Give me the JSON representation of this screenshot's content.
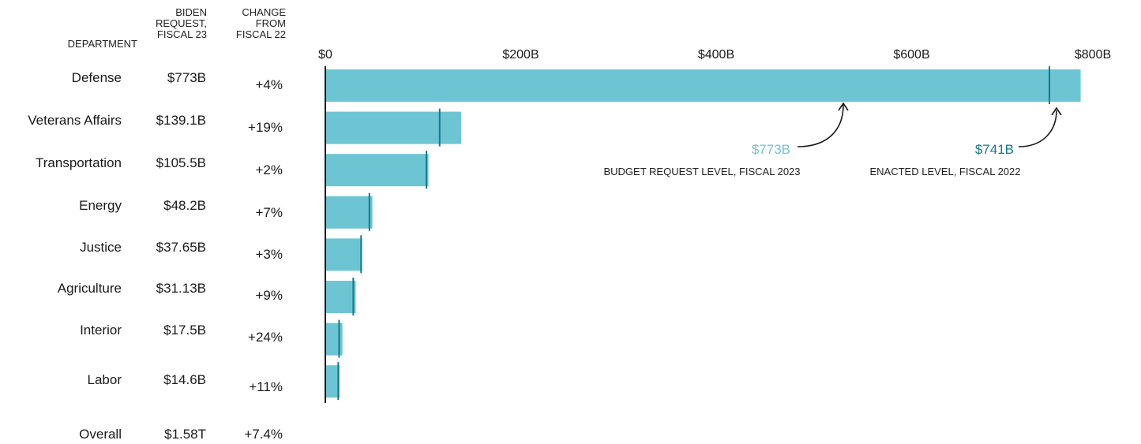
{
  "headers": {
    "department": "DEPARTMENT",
    "request": [
      "BIDEN",
      "REQUEST,",
      "FISCAL 23"
    ],
    "change": [
      "CHANGE",
      "FROM",
      "FISCAL 22"
    ]
  },
  "overall": {
    "label": "Overall",
    "request": "$1.58T",
    "change": "+7.4%"
  },
  "annotations": {
    "request_value": "$773B",
    "request_label": "BUDGET REQUEST LEVEL, FISCAL 2023",
    "enacted_value": "$741B",
    "enacted_label": "ENACTED LEVEL, FISCAL 2022"
  },
  "colors": {
    "bar": "#6dc5d3",
    "marker": "#137a8f",
    "axis": "#1a1a1a"
  },
  "chart_data": {
    "type": "bar",
    "orientation": "horizontal",
    "xlim": [
      0,
      800
    ],
    "x_ticks": [
      "$0",
      "$200B",
      "$400B",
      "$600B",
      "$800B"
    ],
    "x_tick_values": [
      0,
      200,
      400,
      600,
      800
    ],
    "categories": [
      "Defense",
      "Veterans Affairs",
      "Transportation",
      "Energy",
      "Justice",
      "Agriculture",
      "Interior",
      "Labor"
    ],
    "series": [
      {
        "values": [
          773,
          139.1,
          105.5,
          48.2,
          37.65,
          31.13,
          17.5,
          14.6
        ]
      },
      {
        "values": [
          741,
          117,
          103.5,
          45.1,
          36.6,
          28.6,
          14.1,
          13.2
        ]
      }
    ],
    "request_labels": [
      "$773B",
      "$139.1B",
      "$105.5B",
      "$48.2B",
      "$37.65B",
      "$31.13B",
      "$17.5B",
      "$14.6B"
    ],
    "change_labels": [
      "+4%",
      "+19%",
      "+2%",
      "+7%",
      "+3%",
      "+9%",
      "+24%",
      "+11%"
    ]
  }
}
